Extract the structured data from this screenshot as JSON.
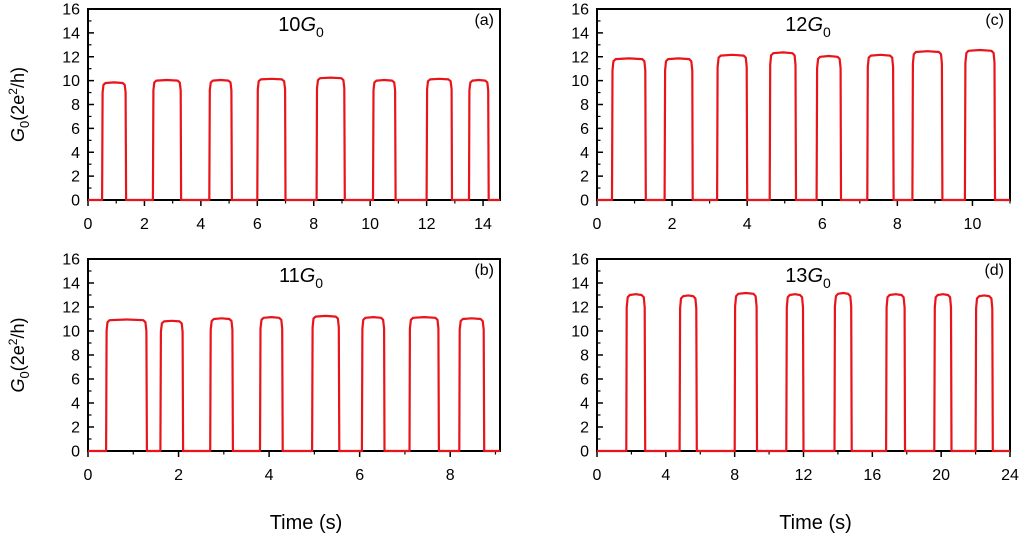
{
  "colors": {
    "line": "#e8141a",
    "axis": "#000000"
  },
  "figure": {
    "x_axis_title": "Time (s)",
    "y_axis_title": "G0(2e²/h)"
  },
  "chart_data": [
    {
      "id": "a",
      "type": "line",
      "panel_label": "(a)",
      "annotation": {
        "number": "10",
        "symbol": "G",
        "subscript": "0"
      },
      "xlim": [
        0,
        14.6
      ],
      "ylim": [
        0,
        16
      ],
      "xticks": [
        0,
        2,
        4,
        6,
        8,
        10,
        12,
        14
      ],
      "yticks": [
        0,
        2,
        4,
        6,
        8,
        10,
        12,
        14,
        16
      ],
      "show_xticklabels": true,
      "show_ylabel": true,
      "show_xlabel": false,
      "xlabel": "",
      "ylabel": "G0(2e²/h)",
      "pulses": [
        [
          0.5,
          1.35,
          9.8
        ],
        [
          2.3,
          3.3,
          10.0
        ],
        [
          4.3,
          5.1,
          10.0
        ],
        [
          6.0,
          7.0,
          10.1
        ],
        [
          8.1,
          9.1,
          10.2
        ],
        [
          10.1,
          10.9,
          10.0
        ],
        [
          12.0,
          12.9,
          10.1
        ],
        [
          13.5,
          14.2,
          10.0
        ]
      ],
      "series": [
        {
          "name": "10G0",
          "color": "#e8141a"
        }
      ]
    },
    {
      "id": "b",
      "type": "line",
      "panel_label": "(b)",
      "annotation": {
        "number": "11",
        "symbol": "G",
        "subscript": "0"
      },
      "xlim": [
        0,
        9.1
      ],
      "ylim": [
        0,
        16
      ],
      "xticks": [
        0,
        2,
        4,
        6,
        8
      ],
      "yticks": [
        0,
        2,
        4,
        6,
        8,
        10,
        12,
        14,
        16
      ],
      "show_xticklabels": true,
      "show_ylabel": true,
      "show_xlabel": true,
      "xlabel": "Time (s)",
      "ylabel": "G0(2e²/h)",
      "pulses": [
        [
          0.4,
          1.3,
          10.9
        ],
        [
          1.6,
          2.1,
          10.8
        ],
        [
          2.7,
          3.2,
          11.0
        ],
        [
          3.8,
          4.3,
          11.1
        ],
        [
          4.95,
          5.55,
          11.2
        ],
        [
          6.05,
          6.55,
          11.1
        ],
        [
          7.1,
          7.75,
          11.1
        ],
        [
          8.2,
          8.75,
          11.0
        ]
      ],
      "series": [
        {
          "name": "11G0",
          "color": "#e8141a"
        }
      ]
    },
    {
      "id": "c",
      "type": "line",
      "panel_label": "(c)",
      "annotation": {
        "number": "12",
        "symbol": "G",
        "subscript": "0"
      },
      "xlim": [
        0,
        11
      ],
      "ylim": [
        0,
        16
      ],
      "xticks": [
        0,
        2,
        4,
        6,
        8,
        10
      ],
      "yticks": [
        0,
        2,
        4,
        6,
        8,
        10,
        12,
        14,
        16
      ],
      "show_xticklabels": true,
      "show_ylabel": false,
      "show_xlabel": false,
      "xlabel": "",
      "ylabel": "",
      "pulses": [
        [
          0.4,
          1.3,
          11.8
        ],
        [
          1.8,
          2.55,
          11.8
        ],
        [
          3.2,
          4.0,
          12.1
        ],
        [
          4.6,
          5.3,
          12.3
        ],
        [
          5.85,
          6.5,
          12.0
        ],
        [
          7.2,
          7.9,
          12.1
        ],
        [
          8.4,
          9.2,
          12.4
        ],
        [
          9.8,
          10.6,
          12.5
        ]
      ],
      "series": [
        {
          "name": "12G0",
          "color": "#e8141a"
        }
      ]
    },
    {
      "id": "d",
      "type": "line",
      "panel_label": "(d)",
      "annotation": {
        "number": "13",
        "symbol": "G",
        "subscript": "0"
      },
      "xlim": [
        0,
        24
      ],
      "ylim": [
        0,
        16
      ],
      "xticks": [
        0,
        4,
        8,
        12,
        16,
        20,
        24
      ],
      "yticks": [
        0,
        2,
        4,
        6,
        8,
        10,
        12,
        14,
        16
      ],
      "show_xticklabels": true,
      "show_ylabel": false,
      "show_xlabel": true,
      "xlabel": "Time (s)",
      "ylabel": "",
      "pulses": [
        [
          1.7,
          2.8,
          13.0
        ],
        [
          4.8,
          5.8,
          12.9
        ],
        [
          8.0,
          9.3,
          13.1
        ],
        [
          11.0,
          12.0,
          13.0
        ],
        [
          13.8,
          14.8,
          13.1
        ],
        [
          16.8,
          17.9,
          13.0
        ],
        [
          19.6,
          20.6,
          13.0
        ],
        [
          22.0,
          23.0,
          12.9
        ]
      ],
      "series": [
        {
          "name": "13G0",
          "color": "#e8141a"
        }
      ]
    }
  ]
}
